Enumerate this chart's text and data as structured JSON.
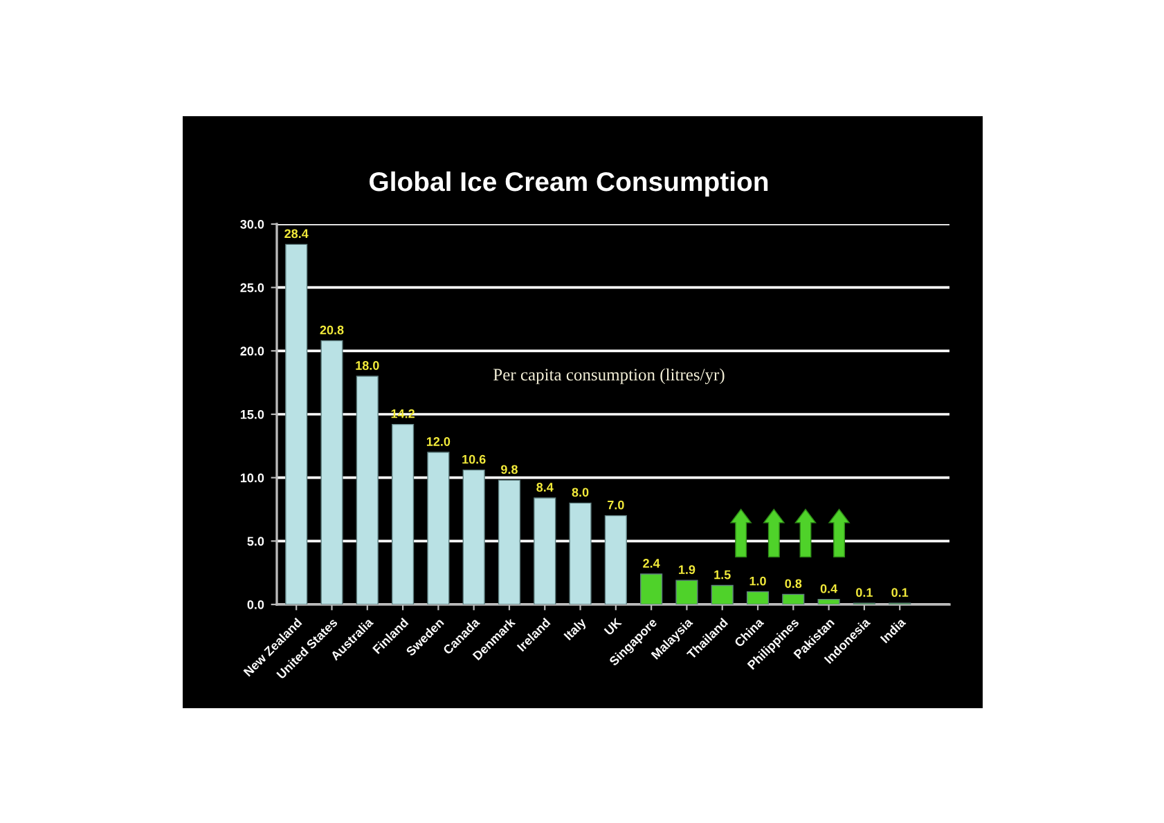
{
  "chart_data": {
    "type": "bar",
    "title": "Global Ice Cream Consumption",
    "categories": [
      "New Zealand",
      "United States",
      "Australia",
      "Finland",
      "Sweden",
      "Canada",
      "Denmark",
      "Ireland",
      "Italy",
      "UK",
      "Singapore",
      "Malaysia",
      "Thailand",
      "China",
      "Philippines",
      "Pakistan",
      "Indonesia",
      "India"
    ],
    "values": [
      28.4,
      20.8,
      18.0,
      14.2,
      12.0,
      10.6,
      9.8,
      8.4,
      8.0,
      7.0,
      2.4,
      1.9,
      1.5,
      1.0,
      0.8,
      0.4,
      0.1,
      0.1
    ],
    "colors": [
      "#b9e1e4",
      "#b9e1e4",
      "#b9e1e4",
      "#b9e1e4",
      "#b9e1e4",
      "#b9e1e4",
      "#b9e1e4",
      "#b9e1e4",
      "#b9e1e4",
      "#b9e1e4",
      "#4fd22a",
      "#4fd22a",
      "#4fd22a",
      "#4fd22a",
      "#4fd22a",
      "#4fd22a",
      "#4fd22a",
      "#4fd22a"
    ],
    "value_labels": [
      "28.4",
      "20.8",
      "18.0",
      "14.2",
      "12.0",
      "10.6",
      "9.8",
      "8.4",
      "8.0",
      "7.0",
      "2.4",
      "1.9",
      "1.5",
      "1.0",
      "0.8",
      "0.4",
      "0.1",
      "0.1"
    ],
    "ylim": [
      0,
      30
    ],
    "yticks": [
      {
        "value": 0,
        "label": "0.0"
      },
      {
        "value": 5,
        "label": "5.0"
      },
      {
        "value": 10,
        "label": "10.0"
      },
      {
        "value": 15,
        "label": "15.0"
      },
      {
        "value": 20,
        "label": "20.0"
      },
      {
        "value": 25,
        "label": "25.0"
      },
      {
        "value": 30,
        "label": "30.0"
      }
    ],
    "grid": "y",
    "annotations": [
      "Per capita consumption (litres/yr)"
    ]
  }
}
